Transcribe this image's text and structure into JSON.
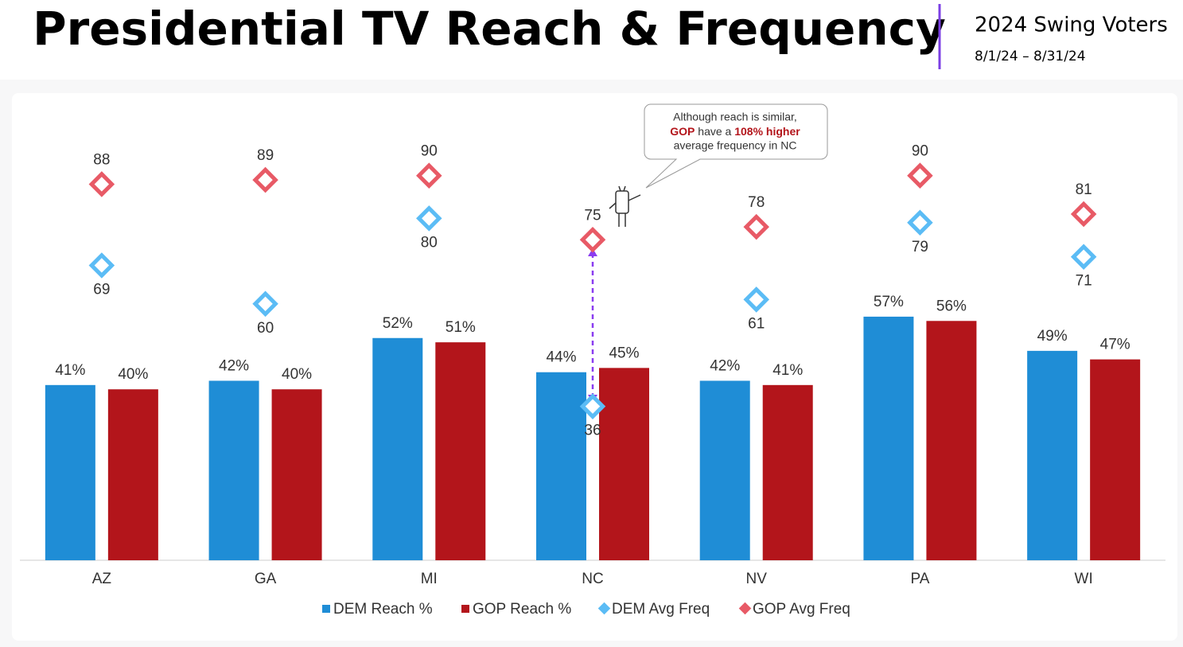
{
  "header": {
    "title": "Presidential TV Reach & Frequency",
    "subtitle": "2024 Swing Voters",
    "date_range": "8/1/24 – 8/31/24"
  },
  "chart_data": {
    "type": "bar",
    "categories": [
      "AZ",
      "GA",
      "MI",
      "NC",
      "NV",
      "PA",
      "WI"
    ],
    "ylim": [
      0,
      100
    ],
    "y2lim": [
      0,
      100
    ],
    "series": [
      {
        "name": "DEM Reach %",
        "type": "bar",
        "color": "#1f8dd6",
        "values": [
          41,
          42,
          52,
          44,
          42,
          57,
          49
        ],
        "value_labels": [
          "41%",
          "42%",
          "52%",
          "44%",
          "42%",
          "57%",
          "49%"
        ]
      },
      {
        "name": "GOP Reach %",
        "type": "bar",
        "color": "#b3151b",
        "values": [
          40,
          40,
          51,
          45,
          41,
          56,
          47
        ],
        "value_labels": [
          "40%",
          "40%",
          "51%",
          "45%",
          "41%",
          "56%",
          "47%"
        ]
      },
      {
        "name": "DEM Avg Freq",
        "type": "scatter",
        "axis": "y2",
        "color": "#5bbcf5",
        "values": [
          69,
          60,
          80,
          36,
          61,
          79,
          71
        ]
      },
      {
        "name": "GOP Avg Freq",
        "type": "scatter",
        "axis": "y2",
        "color": "#e85a66",
        "values": [
          88,
          89,
          90,
          75,
          78,
          90,
          81
        ]
      }
    ],
    "annotation": [
      "Although reach is similar,",
      "GOP",
      " have a ",
      "108% higher",
      "average frequency in NC"
    ]
  }
}
